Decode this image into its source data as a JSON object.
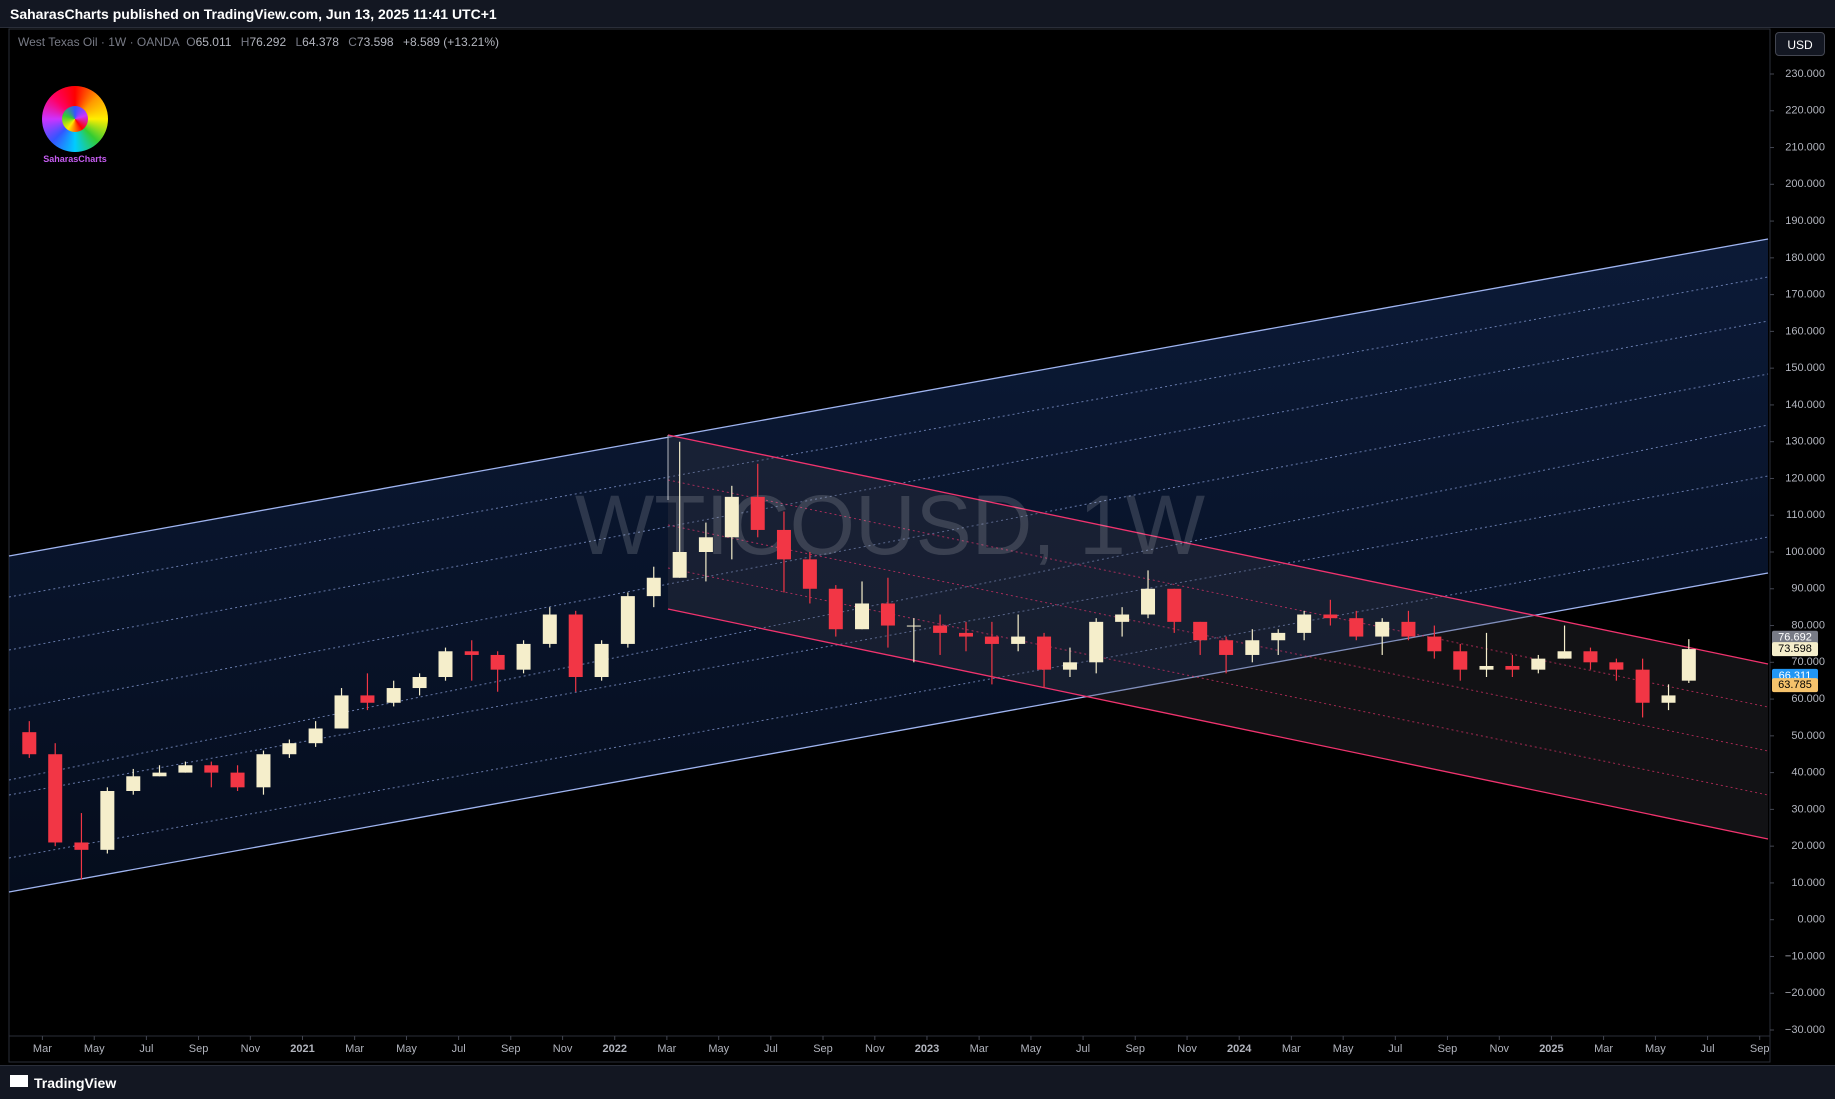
{
  "header": {
    "publisher": "SaharasCharts published on TradingView.com, Jun 13, 2025 11:41 UTC+1",
    "symbol": "West Texas Oil · 1W · OANDA",
    "ohlc_labels": [
      "O",
      "H",
      "L",
      "C"
    ],
    "change": "+8.589 (+13.21%)",
    "watermark": "WTICOUSD, 1W",
    "logo_text": "SaharasCharts",
    "currency": "USD",
    "footer": "TradingView"
  },
  "chart_data": {
    "type": "candlestick",
    "up_color": "#f5eecb",
    "down_color": "#f23645",
    "xlim": [
      2020.06,
      2025.7
    ],
    "xticks": [
      {
        "value": 2020.167,
        "label": "Mar"
      },
      {
        "value": 2020.333,
        "label": "May"
      },
      {
        "value": 2020.5,
        "label": "Jul"
      },
      {
        "value": 2020.667,
        "label": "Sep"
      },
      {
        "value": 2020.833,
        "label": "Nov"
      },
      2021,
      {
        "value": 2021.167,
        "label": "Mar"
      },
      {
        "value": 2021.333,
        "label": "May"
      },
      {
        "value": 2021.5,
        "label": "Jul"
      },
      {
        "value": 2021.667,
        "label": "Sep"
      },
      {
        "value": 2021.833,
        "label": "Nov"
      },
      2022,
      {
        "value": 2022.167,
        "label": "Mar"
      },
      {
        "value": 2022.333,
        "label": "May"
      },
      {
        "value": 2022.5,
        "label": "Jul"
      },
      {
        "value": 2022.667,
        "label": "Sep"
      },
      {
        "value": 2022.833,
        "label": "Nov"
      },
      2023,
      {
        "value": 2023.167,
        "label": "Mar"
      },
      {
        "value": 2023.333,
        "label": "May"
      },
      {
        "value": 2023.5,
        "label": "Jul"
      },
      {
        "value": 2023.667,
        "label": "Sep"
      },
      {
        "value": 2023.833,
        "label": "Nov"
      },
      2024,
      {
        "value": 2024.167,
        "label": "Mar"
      },
      {
        "value": 2024.333,
        "label": "May"
      },
      {
        "value": 2024.5,
        "label": "Jul"
      },
      {
        "value": 2024.667,
        "label": "Sep"
      },
      {
        "value": 2024.833,
        "label": "Nov"
      },
      2025,
      {
        "value": 2025.167,
        "label": "Mar"
      },
      {
        "value": 2025.333,
        "label": "May"
      },
      {
        "value": 2025.5,
        "label": "Jul"
      },
      {
        "value": 2025.667,
        "label": "Sep"
      }
    ],
    "ylim": [
      -30,
      230
    ],
    "yticks": [
      {
        "value": 230,
        "label": "230.000"
      },
      {
        "value": 220,
        "label": "220.000"
      },
      {
        "value": 210,
        "label": "210.000"
      },
      {
        "value": 200,
        "label": "200.000"
      },
      {
        "value": 190,
        "label": "190.000"
      },
      {
        "value": 180,
        "label": "180.000"
      },
      {
        "value": 170,
        "label": "170.000"
      },
      {
        "value": 160,
        "label": "160.000"
      },
      {
        "value": 150,
        "label": "150.000"
      },
      {
        "value": 140,
        "label": "140.000"
      },
      {
        "value": 130,
        "label": "130.000"
      },
      {
        "value": 120,
        "label": "120.000"
      },
      {
        "value": 110,
        "label": "110.000"
      },
      {
        "value": 100,
        "label": "100.000"
      },
      {
        "value": 90,
        "label": "90.000"
      },
      {
        "value": 80,
        "label": "80.000"
      },
      {
        "value": 70,
        "label": "70.000"
      },
      {
        "value": 60,
        "label": "60.000"
      },
      {
        "value": 50,
        "label": "50.000"
      },
      {
        "value": 40,
        "label": "40.000"
      },
      {
        "value": 30,
        "label": "30.000"
      },
      {
        "value": 20,
        "label": "20.000"
      },
      {
        "value": 10,
        "label": "10.000"
      },
      {
        "value": 0,
        "label": "0.000"
      },
      {
        "value": -10,
        "label": "−10.000"
      },
      {
        "value": -20,
        "label": "−20.000"
      },
      {
        "value": -30,
        "label": "−30.000"
      }
    ],
    "price_labels": [
      {
        "value": 76.692,
        "color": "#787b86",
        "text_color": "#ffffff"
      },
      {
        "value": 73.598,
        "color": "#f5eecb",
        "text_color": "#000000"
      },
      {
        "value": 66.311,
        "color": "#2196f3",
        "text_color": "#ffffff"
      },
      {
        "value": 63.785,
        "color": "#f5c26b",
        "text_color": "#000000"
      }
    ],
    "candles": [
      {
        "x": 2020.125,
        "open": 51,
        "high": 54,
        "low": 44,
        "close": 45
      },
      {
        "x": 2020.208,
        "open": 45,
        "high": 48,
        "low": 20,
        "close": 21
      },
      {
        "x": 2020.292,
        "open": 21,
        "high": 29,
        "low": 11,
        "close": 19
      },
      {
        "x": 2020.375,
        "open": 19,
        "high": 36,
        "low": 18,
        "close": 35
      },
      {
        "x": 2020.458,
        "open": 35,
        "high": 41,
        "low": 34,
        "close": 39
      },
      {
        "x": 2020.542,
        "open": 39,
        "high": 42,
        "low": 39,
        "close": 40
      },
      {
        "x": 2020.625,
        "open": 40,
        "high": 43,
        "low": 40,
        "close": 42
      },
      {
        "x": 2020.708,
        "open": 42,
        "high": 43,
        "low": 36,
        "close": 40
      },
      {
        "x": 2020.792,
        "open": 40,
        "high": 42,
        "low": 35,
        "close": 36
      },
      {
        "x": 2020.875,
        "open": 36,
        "high": 46,
        "low": 34,
        "close": 45
      },
      {
        "x": 2020.958,
        "open": 45,
        "high": 49,
        "low": 44,
        "close": 48
      },
      {
        "x": 2021.042,
        "open": 48,
        "high": 54,
        "low": 47,
        "close": 52
      },
      {
        "x": 2021.125,
        "open": 52,
        "high": 63,
        "low": 52,
        "close": 61
      },
      {
        "x": 2021.208,
        "open": 61,
        "high": 67,
        "low": 57,
        "close": 59
      },
      {
        "x": 2021.292,
        "open": 59,
        "high": 65,
        "low": 58,
        "close": 63
      },
      {
        "x": 2021.375,
        "open": 63,
        "high": 67,
        "low": 61,
        "close": 66
      },
      {
        "x": 2021.458,
        "open": 66,
        "high": 74,
        "low": 65,
        "close": 73
      },
      {
        "x": 2021.542,
        "open": 73,
        "high": 76,
        "low": 65,
        "close": 72
      },
      {
        "x": 2021.625,
        "open": 72,
        "high": 73,
        "low": 62,
        "close": 68
      },
      {
        "x": 2021.708,
        "open": 68,
        "high": 76,
        "low": 67,
        "close": 75
      },
      {
        "x": 2021.792,
        "open": 75,
        "high": 85,
        "low": 74,
        "close": 83
      },
      {
        "x": 2021.875,
        "open": 83,
        "high": 84,
        "low": 62,
        "close": 66
      },
      {
        "x": 2021.958,
        "open": 66,
        "high": 76,
        "low": 65,
        "close": 75
      },
      {
        "x": 2022.042,
        "open": 75,
        "high": 89,
        "low": 74,
        "close": 88
      },
      {
        "x": 2022.125,
        "open": 88,
        "high": 96,
        "low": 85,
        "close": 93
      },
      {
        "x": 2022.208,
        "open": 93,
        "high": 130,
        "low": 93,
        "close": 100
      },
      {
        "x": 2022.292,
        "open": 100,
        "high": 108,
        "low": 92,
        "close": 104
      },
      {
        "x": 2022.375,
        "open": 104,
        "high": 118,
        "low": 98,
        "close": 115
      },
      {
        "x": 2022.458,
        "open": 115,
        "high": 124,
        "low": 104,
        "close": 106
      },
      {
        "x": 2022.542,
        "open": 106,
        "high": 111,
        "low": 89,
        "close": 98
      },
      {
        "x": 2022.625,
        "open": 98,
        "high": 100,
        "low": 86,
        "close": 90
      },
      {
        "x": 2022.708,
        "open": 90,
        "high": 91,
        "low": 77,
        "close": 79
      },
      {
        "x": 2022.792,
        "open": 79,
        "high": 92,
        "low": 79,
        "close": 86
      },
      {
        "x": 2022.875,
        "open": 86,
        "high": 93,
        "low": 74,
        "close": 80
      },
      {
        "x": 2022.958,
        "open": 80,
        "high": 82,
        "low": 70,
        "close": 80
      },
      {
        "x": 2023.042,
        "open": 80,
        "high": 83,
        "low": 72,
        "close": 78
      },
      {
        "x": 2023.125,
        "open": 78,
        "high": 81,
        "low": 73,
        "close": 77
      },
      {
        "x": 2023.208,
        "open": 77,
        "high": 81,
        "low": 64,
        "close": 75
      },
      {
        "x": 2023.292,
        "open": 75,
        "high": 83,
        "low": 73,
        "close": 77
      },
      {
        "x": 2023.375,
        "open": 77,
        "high": 78,
        "low": 63,
        "close": 68
      },
      {
        "x": 2023.458,
        "open": 68,
        "high": 74,
        "low": 66,
        "close": 70
      },
      {
        "x": 2023.542,
        "open": 70,
        "high": 82,
        "low": 67,
        "close": 81
      },
      {
        "x": 2023.625,
        "open": 81,
        "high": 85,
        "low": 77,
        "close": 83
      },
      {
        "x": 2023.708,
        "open": 83,
        "high": 95,
        "low": 82,
        "close": 90
      },
      {
        "x": 2023.792,
        "open": 90,
        "high": 90,
        "low": 78,
        "close": 81
      },
      {
        "x": 2023.875,
        "open": 81,
        "high": 81,
        "low": 72,
        "close": 76
      },
      {
        "x": 2023.958,
        "open": 76,
        "high": 77,
        "low": 67,
        "close": 72
      },
      {
        "x": 2024.042,
        "open": 72,
        "high": 79,
        "low": 70,
        "close": 76
      },
      {
        "x": 2024.125,
        "open": 76,
        "high": 79,
        "low": 72,
        "close": 78
      },
      {
        "x": 2024.208,
        "open": 78,
        "high": 84,
        "low": 76,
        "close": 83
      },
      {
        "x": 2024.292,
        "open": 83,
        "high": 87,
        "low": 80,
        "close": 82
      },
      {
        "x": 2024.375,
        "open": 82,
        "high": 84,
        "low": 76,
        "close": 77
      },
      {
        "x": 2024.458,
        "open": 77,
        "high": 82,
        "low": 72,
        "close": 81
      },
      {
        "x": 2024.542,
        "open": 81,
        "high": 84,
        "low": 76,
        "close": 77
      },
      {
        "x": 2024.625,
        "open": 77,
        "high": 80,
        "low": 71,
        "close": 73
      },
      {
        "x": 2024.708,
        "open": 73,
        "high": 75,
        "low": 65,
        "close": 68
      },
      {
        "x": 2024.792,
        "open": 68,
        "high": 78,
        "low": 66,
        "close": 69
      },
      {
        "x": 2024.875,
        "open": 69,
        "high": 72,
        "low": 66,
        "close": 68
      },
      {
        "x": 2024.958,
        "open": 68,
        "high": 72,
        "low": 67,
        "close": 71
      },
      {
        "x": 2025.042,
        "open": 71,
        "high": 80,
        "low": 71,
        "close": 73
      },
      {
        "x": 2025.125,
        "open": 73,
        "high": 74,
        "low": 68,
        "close": 70
      },
      {
        "x": 2025.208,
        "open": 70,
        "high": 71,
        "low": 65,
        "close": 68
      },
      {
        "x": 2025.292,
        "open": 68,
        "high": 71,
        "low": 55,
        "close": 59
      },
      {
        "x": 2025.375,
        "open": 59,
        "high": 64,
        "low": 57,
        "close": 61
      },
      {
        "x": 2025.44,
        "open": 65.011,
        "high": 76.292,
        "low": 64.378,
        "close": 73.598
      }
    ]
  }
}
